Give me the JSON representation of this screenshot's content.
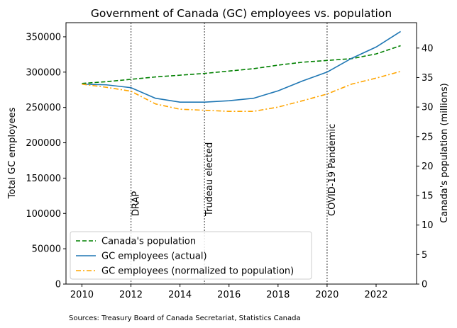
{
  "chart_data": {
    "type": "line",
    "title": "Government of Canada (GC) employees vs. population",
    "xlabel": "",
    "ylabel_left": "Total GC employees",
    "ylabel_right": "Canada's population (millions)",
    "xlim": [
      2009.35,
      2023.65
    ],
    "ylim_left": [
      0,
      370000
    ],
    "ylim_right": [
      0,
      44.3
    ],
    "x_ticks": [
      2010,
      2012,
      2014,
      2016,
      2018,
      2020,
      2022
    ],
    "y_ticks_left": [
      0,
      50000,
      100000,
      150000,
      200000,
      250000,
      300000,
      350000
    ],
    "y_ticks_right": [
      0,
      5,
      10,
      15,
      20,
      25,
      30,
      35,
      40
    ],
    "grid": false,
    "legend_position": "lower-left",
    "x": [
      2010,
      2011,
      2012,
      2013,
      2014,
      2015,
      2016,
      2017,
      2018,
      2019,
      2020,
      2021,
      2022,
      2023
    ],
    "series": [
      {
        "name": "Canada's population",
        "axis": "right",
        "color": "#008000",
        "style": "dashed",
        "values": [
          34.0,
          34.3,
          34.7,
          35.1,
          35.4,
          35.7,
          36.1,
          36.5,
          37.1,
          37.6,
          37.9,
          38.2,
          39.0,
          40.4
        ]
      },
      {
        "name": "GC employees (actual)",
        "axis": "left",
        "color": "#1f77b4",
        "style": "solid",
        "values": [
          283000,
          282000,
          278000,
          263000,
          257500,
          257500,
          259500,
          263000,
          273500,
          287500,
          300000,
          319500,
          335500,
          357500
        ]
      },
      {
        "name": "GC employees (normalized to population)",
        "axis": "left",
        "color": "#ffa500",
        "style": "dashdot",
        "values": [
          283000,
          278500,
          273000,
          255000,
          247500,
          246000,
          244500,
          244500,
          250500,
          259500,
          269000,
          283000,
          291500,
          301000
        ]
      }
    ],
    "annotations": [
      {
        "x": 2012,
        "label": "DRAP"
      },
      {
        "x": 2015,
        "label": "Trudeau elected"
      },
      {
        "x": 2020,
        "label": "COVID-19 Pandemic"
      }
    ],
    "source_note": "Sources: Treasury Board of Canada Secretariat, Statistics Canada"
  }
}
